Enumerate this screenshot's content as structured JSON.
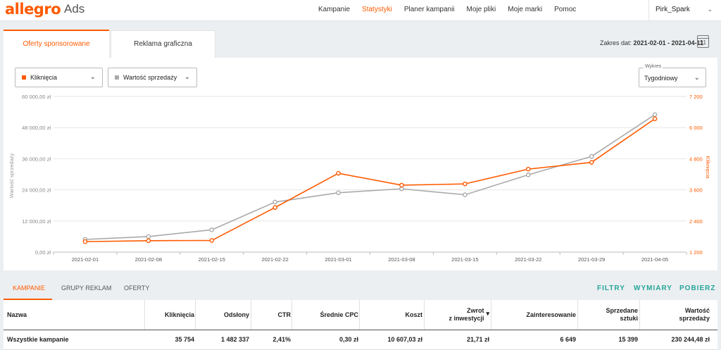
{
  "header": {
    "logo": "allegro",
    "logo_suffix": "Ads",
    "nav": [
      "Kampanie",
      "Statystyki",
      "Planer kampanii",
      "Moje pliki",
      "Moje marki",
      "Pomoc"
    ],
    "active_nav": "Statystyki",
    "user": "Pirk_Spark"
  },
  "tabs": {
    "sponsored": "Oferty sponsorowane",
    "display": "Reklama graficzna"
  },
  "date_range": {
    "label": "Zakres dat:",
    "value": "2021-02-01 - 2021-04-11",
    "calendar_day": "31"
  },
  "selectors": {
    "metric1": "Kliknięcia",
    "metric2": "Wartość sprzedaży",
    "metric1_color": "#ff5a00",
    "metric2_color": "#aaaaaa",
    "chart_label": "Wykres",
    "chart_value": "Tygodniowy"
  },
  "chart_data": {
    "type": "line",
    "x": [
      "2021-02-01",
      "2021-02-08",
      "2021-02-15",
      "2021-02-22",
      "2021-03-01",
      "2021-03-08",
      "2021-03-15",
      "2021-03-22",
      "2021-03-29",
      "2021-04-05"
    ],
    "series": [
      {
        "name": "Kliknięcia",
        "axis": "right",
        "color": "#ff5a00",
        "values": [
          1605,
          1640,
          1650,
          2920,
          4240,
          3780,
          3830,
          4400,
          4660,
          6340
        ]
      },
      {
        "name": "Wartość sprzedaży",
        "axis": "left",
        "color": "#aaaaaa",
        "values": [
          4900,
          6000,
          8600,
          19300,
          22900,
          24400,
          22100,
          29800,
          36900,
          53000
        ]
      }
    ],
    "left_axis": {
      "label": "Wartość sprzedaży",
      "ticks": [
        "60 000,00 zł",
        "48 000,00 zł",
        "36 000,00 zł",
        "24 000,00 zł",
        "12 000,00 zł",
        "0,00 zł"
      ],
      "ylim": [
        0,
        60000
      ]
    },
    "right_axis": {
      "label": "Kliknięcia",
      "ticks": [
        "7 200",
        "6 000",
        "4 800",
        "3 600",
        "2 400",
        "1 200"
      ],
      "ylim": [
        1200,
        7200
      ]
    },
    "grid": true
  },
  "subtabs": [
    "KAMPANIE",
    "GRUPY REKLAM",
    "OFERTY"
  ],
  "actions": [
    "FILTRY",
    "WYMIARY",
    "POBIERZ"
  ],
  "table": {
    "columns": [
      "Nazwa",
      "Kliknięcia",
      "Odsłony",
      "CTR",
      "Średnie CPC",
      "Koszt",
      "Zwrot z inwestycji",
      "Zainteresowanie",
      "Sprzedane sztuki",
      "Wartość sprzedaży"
    ],
    "col_lines": [
      [
        "Nazwa"
      ],
      [
        "Kliknięcia"
      ],
      [
        "Odsłony"
      ],
      [
        "CTR"
      ],
      [
        "Średnie CPC"
      ],
      [
        "Koszt"
      ],
      [
        "Zwrot",
        "z inwestycji"
      ],
      [
        "Zainteresowanie"
      ],
      [
        "Sprzedane",
        "sztuki"
      ],
      [
        "Wartość",
        "sprzedaży"
      ]
    ],
    "sort_column": "Zwrot z inwestycji",
    "rows": [
      [
        "Wszystkie kampanie",
        "35 754",
        "1 482 337",
        "2,41%",
        "0,30 zł",
        "10 607,03 zł",
        "21,71 zł",
        "6 649",
        "15 399",
        "230 244,48 zł"
      ]
    ]
  }
}
